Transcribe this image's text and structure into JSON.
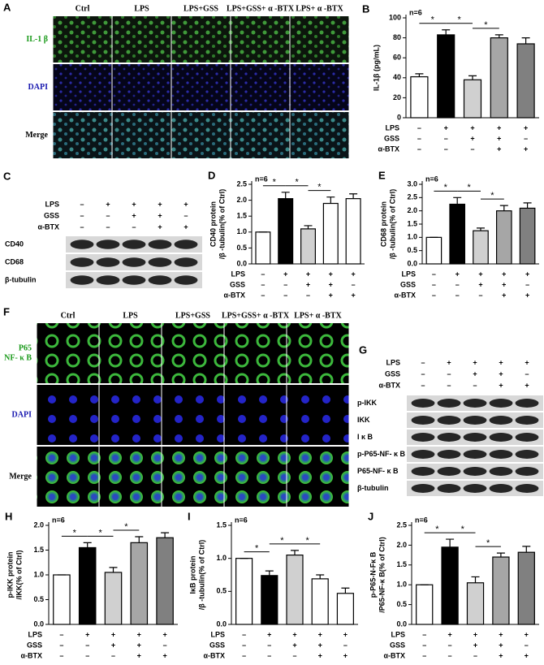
{
  "panels": {
    "A": {
      "letter": "A",
      "columns": [
        "Ctrl",
        "LPS",
        "LPS+GSS",
        "LPS+GSS+ α -BTX",
        "LPS+ α -BTX"
      ],
      "rows": [
        [
          "IL-1 β"
        ],
        [
          "DAPI"
        ],
        [
          "Merge"
        ]
      ]
    },
    "C": {
      "letter": "C",
      "treatments": [
        {
          "name": "LPS",
          "signs": [
            "–",
            "+",
            "+",
            "+",
            "+"
          ]
        },
        {
          "name": "GSS",
          "signs": [
            "–",
            "–",
            "+",
            "+",
            "–"
          ]
        },
        {
          "name": "α-BTX",
          "signs": [
            "–",
            "–",
            "–",
            "+",
            "+"
          ]
        }
      ],
      "bands": [
        "CD40",
        "CD68",
        "β-tubulin"
      ]
    },
    "F": {
      "letter": "F",
      "columns": [
        "Ctrl",
        "LPS",
        "LPS+GSS",
        "LPS+GSS+ α -BTX",
        "LPS+ α -BTX"
      ],
      "rows": [
        [
          "P65",
          "NF- κ B"
        ],
        [
          "DAPI"
        ],
        [
          "Merge"
        ]
      ]
    },
    "G": {
      "letter": "G",
      "treatments": [
        {
          "name": "LPS",
          "signs": [
            "–",
            "+",
            "+",
            "+",
            "+"
          ]
        },
        {
          "name": "GSS",
          "signs": [
            "–",
            "–",
            "+",
            "+",
            "–"
          ]
        },
        {
          "name": "α-BTX",
          "signs": [
            "–",
            "–",
            "–",
            "+",
            "+"
          ]
        }
      ],
      "bands": [
        "p-IKK",
        "IKK",
        "I κ B",
        "p-P65-NF- κ B",
        "P65-NF- κ B",
        "β-tubulin"
      ]
    }
  },
  "chart_data": [
    {
      "type": "bar",
      "letter": "B",
      "n_label": "n=6",
      "ylabel": [
        "IL-1β (pg/mL)"
      ],
      "values": [
        41,
        83,
        38,
        80,
        74
      ],
      "errors": [
        3,
        5,
        4,
        3,
        6
      ],
      "colors": [
        "#ffffff",
        "#000000",
        "#d0d0d0",
        "#a6a6a6",
        "#808080"
      ],
      "ylim": [
        0,
        100
      ],
      "yticks": [
        0,
        20,
        40,
        60,
        80,
        100
      ],
      "significance": [
        "*",
        "*",
        "*"
      ],
      "treatments": [
        {
          "name": "LPS",
          "signs": [
            "–",
            "+",
            "+",
            "+",
            "+"
          ]
        },
        {
          "name": "GSS",
          "signs": [
            "–",
            "–",
            "+",
            "+",
            "–"
          ]
        },
        {
          "name": "α-BTX",
          "signs": [
            "–",
            "–",
            "–",
            "+",
            "+"
          ]
        }
      ]
    },
    {
      "type": "bar",
      "letter": "D",
      "n_label": "n=6",
      "ylabel": [
        "CD40 protein",
        "/β -tubulin(% of Ctrl)"
      ],
      "values": [
        1.0,
        2.05,
        1.1,
        1.9,
        2.05
      ],
      "errors": [
        0,
        0.2,
        0.1,
        0.2,
        0.15
      ],
      "colors": [
        "#ffffff",
        "#000000",
        "#d0d0d0",
        "#ffffff",
        "#ffffff"
      ],
      "ylim": [
        0,
        2.5
      ],
      "yticks": [
        {
          "value": 0,
          "label": "0.0"
        },
        0.5,
        {
          "value": 1,
          "label": "1.0"
        },
        1.5,
        {
          "value": 2,
          "label": "2.0"
        },
        2.5
      ],
      "significance": [
        "*",
        "*",
        "*"
      ],
      "treatments": [
        {
          "name": "LPS",
          "signs": [
            "–",
            "+",
            "+",
            "+",
            "+"
          ]
        },
        {
          "name": "GSS",
          "signs": [
            "–",
            "–",
            "+",
            "+",
            "–"
          ]
        },
        {
          "name": "α-BTX",
          "signs": [
            "–",
            "–",
            "–",
            "+",
            "+"
          ]
        }
      ]
    },
    {
      "type": "bar",
      "letter": "E",
      "n_label": "n=6",
      "ylabel": [
        "CD68 protein",
        "/β -tubulin(% of Ctrl)"
      ],
      "values": [
        1.0,
        2.25,
        1.25,
        2.0,
        2.1
      ],
      "errors": [
        0,
        0.25,
        0.1,
        0.2,
        0.2
      ],
      "colors": [
        "#ffffff",
        "#000000",
        "#d0d0d0",
        "#a6a6a6",
        "#808080"
      ],
      "ylim": [
        0,
        3
      ],
      "yticks": [
        {
          "value": 0,
          "label": "0.0"
        },
        0.5,
        {
          "value": 1,
          "label": "1.0"
        },
        1.5,
        {
          "value": 2,
          "label": "2.0"
        },
        2.5,
        {
          "value": 3,
          "label": "3.0"
        }
      ],
      "significance": [
        "*",
        "*",
        "*"
      ],
      "treatments": [
        {
          "name": "LPS",
          "signs": [
            "–",
            "+",
            "+",
            "+",
            "+"
          ]
        },
        {
          "name": "GSS",
          "signs": [
            "–",
            "–",
            "+",
            "+",
            "–"
          ]
        },
        {
          "name": "α-BTX",
          "signs": [
            "–",
            "–",
            "–",
            "+",
            "+"
          ]
        }
      ]
    },
    {
      "type": "bar",
      "letter": "H",
      "n_label": "n=6",
      "ylabel": [
        "p-IKK protein",
        "/IKK(% of Ctrl)"
      ],
      "values": [
        1.0,
        1.55,
        1.05,
        1.65,
        1.75
      ],
      "errors": [
        0,
        0.1,
        0.1,
        0.12,
        0.1
      ],
      "colors": [
        "#ffffff",
        "#000000",
        "#d0d0d0",
        "#a6a6a6",
        "#808080"
      ],
      "ylim": [
        0,
        2
      ],
      "yticks": [
        {
          "value": 0,
          "label": "0.0"
        },
        0.5,
        {
          "value": 1,
          "label": "1.0"
        },
        1.5,
        {
          "value": 2,
          "label": "2.0"
        }
      ],
      "significance": [
        "*",
        "*",
        "*"
      ],
      "treatments": [
        {
          "name": "LPS",
          "signs": [
            "–",
            "+",
            "+",
            "+",
            "+"
          ]
        },
        {
          "name": "GSS",
          "signs": [
            "–",
            "–",
            "+",
            "+",
            "–"
          ]
        },
        {
          "name": "α-BTX",
          "signs": [
            "–",
            "–",
            "–",
            "+",
            "+"
          ]
        }
      ]
    },
    {
      "type": "bar",
      "letter": "I",
      "n_label": "n=6",
      "ylabel": [
        "IκB protein",
        "/β -tubulin(% of Ctrl)"
      ],
      "values": [
        1.0,
        0.74,
        1.05,
        0.69,
        0.47
      ],
      "errors": [
        0,
        0.07,
        0.07,
        0.06,
        0.08
      ],
      "colors": [
        "#ffffff",
        "#000000",
        "#d0d0d0",
        "#ffffff",
        "#ffffff"
      ],
      "ylim": [
        0,
        1.5
      ],
      "yticks": [
        {
          "value": 0,
          "label": "0.0"
        },
        0.5,
        {
          "value": 1,
          "label": "1.0"
        },
        1.5
      ],
      "significance": [
        "*",
        "*",
        "*"
      ],
      "treatments": [
        {
          "name": "LPS",
          "signs": [
            "–",
            "+",
            "+",
            "+",
            "+"
          ]
        },
        {
          "name": "GSS",
          "signs": [
            "–",
            "–",
            "+",
            "+",
            "–"
          ]
        },
        {
          "name": "α-BTX",
          "signs": [
            "–",
            "–",
            "–",
            "+",
            "+"
          ]
        }
      ]
    },
    {
      "type": "bar",
      "letter": "J",
      "n_label": "n=6",
      "ylabel": [
        "p-P65-N-Fκ B",
        "/P65-NF-κ B(% of Ctrl)"
      ],
      "values": [
        1.0,
        1.95,
        1.05,
        1.7,
        1.82
      ],
      "errors": [
        0,
        0.2,
        0.15,
        0.1,
        0.15
      ],
      "colors": [
        "#ffffff",
        "#000000",
        "#d0d0d0",
        "#a6a6a6",
        "#808080"
      ],
      "ylim": [
        0,
        2.5
      ],
      "yticks": [
        {
          "value": 0,
          "label": "0.0"
        },
        0.5,
        {
          "value": 1,
          "label": "1.0"
        },
        1.5,
        {
          "value": 2,
          "label": "2.0"
        },
        2.5
      ],
      "significance": [
        "*",
        "*",
        "*"
      ],
      "treatments": [
        {
          "name": "LPS",
          "signs": [
            "–",
            "+",
            "+",
            "+",
            "+"
          ]
        },
        {
          "name": "GSS",
          "signs": [
            "–",
            "–",
            "+",
            "+",
            "–"
          ]
        },
        {
          "name": "α-BTX",
          "signs": [
            "–",
            "–",
            "–",
            "+",
            "+"
          ]
        }
      ]
    }
  ]
}
